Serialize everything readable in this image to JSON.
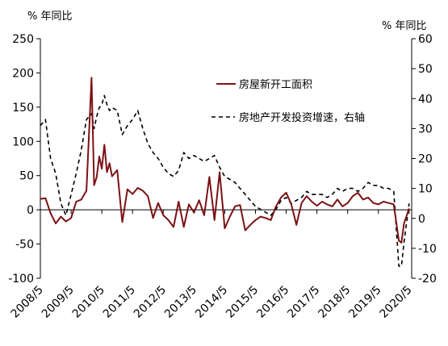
{
  "chart_data": {
    "type": "line",
    "title": "",
    "left_unit": "% 年同比",
    "right_unit": "% 年同比",
    "xlabel": "",
    "ylabel": "",
    "x_tick_labels": [
      "2008/5",
      "2009/5",
      "2010/5",
      "2011/5",
      "2012/5",
      "2013/5",
      "2014/5",
      "2015/5",
      "2016/5",
      "2017/5",
      "2018/5",
      "2019/5",
      "2020/5"
    ],
    "ylim_left": [
      -100,
      250
    ],
    "yticks_left": [
      -100,
      -50,
      0,
      50,
      100,
      150,
      200,
      250
    ],
    "ylim_right": [
      -20,
      60
    ],
    "yticks_right": [
      -20,
      -10,
      0,
      10,
      20,
      30,
      40,
      50,
      60
    ],
    "grid": false,
    "legend_position": "upper-center-right",
    "series": [
      {
        "name": "房屋新开工面积",
        "axis": "left",
        "style": "solid",
        "color": "#7b1214",
        "points": [
          [
            "2008/5",
            16
          ],
          [
            "2008/7",
            17
          ],
          [
            "2008/9",
            -5
          ],
          [
            "2008/11",
            -20
          ],
          [
            "2009/1",
            -10
          ],
          [
            "2009/3",
            -17
          ],
          [
            "2009/5",
            -12
          ],
          [
            "2009/7",
            12
          ],
          [
            "2009/9",
            15
          ],
          [
            "2009/11",
            28
          ],
          [
            "2010/1",
            193
          ],
          [
            "2010/2",
            36
          ],
          [
            "2010/3",
            48
          ],
          [
            "2010/4",
            78
          ],
          [
            "2010/5",
            60
          ],
          [
            "2010/6",
            95
          ],
          [
            "2010/7",
            55
          ],
          [
            "2010/8",
            68
          ],
          [
            "2010/9",
            49
          ],
          [
            "2010/11",
            58
          ],
          [
            "2011/1",
            -18
          ],
          [
            "2011/3",
            30
          ],
          [
            "2011/5",
            23
          ],
          [
            "2011/7",
            32
          ],
          [
            "2011/9",
            28
          ],
          [
            "2011/11",
            20
          ],
          [
            "2012/1",
            -12
          ],
          [
            "2012/3",
            10
          ],
          [
            "2012/5",
            -8
          ],
          [
            "2012/7",
            -15
          ],
          [
            "2012/9",
            -25
          ],
          [
            "2012/11",
            12
          ],
          [
            "2013/1",
            -25
          ],
          [
            "2013/3",
            8
          ],
          [
            "2013/5",
            -4
          ],
          [
            "2013/7",
            14
          ],
          [
            "2013/9",
            -8
          ],
          [
            "2013/11",
            48
          ],
          [
            "2014/1",
            -15
          ],
          [
            "2014/3",
            55
          ],
          [
            "2014/5",
            -27
          ],
          [
            "2014/7",
            -10
          ],
          [
            "2014/9",
            5
          ],
          [
            "2014/11",
            7
          ],
          [
            "2015/1",
            -30
          ],
          [
            "2015/3",
            -22
          ],
          [
            "2015/5",
            -15
          ],
          [
            "2015/7",
            -10
          ],
          [
            "2015/9",
            -12
          ],
          [
            "2015/11",
            -15
          ],
          [
            "2016/1",
            5
          ],
          [
            "2016/3",
            18
          ],
          [
            "2016/5",
            25
          ],
          [
            "2016/7",
            8
          ],
          [
            "2016/9",
            -22
          ],
          [
            "2016/11",
            10
          ],
          [
            "2017/1",
            20
          ],
          [
            "2017/3",
            12
          ],
          [
            "2017/5",
            6
          ],
          [
            "2017/7",
            12
          ],
          [
            "2017/9",
            8
          ],
          [
            "2017/11",
            5
          ],
          [
            "2018/1",
            15
          ],
          [
            "2018/3",
            5
          ],
          [
            "2018/5",
            10
          ],
          [
            "2018/7",
            20
          ],
          [
            "2018/9",
            25
          ],
          [
            "2018/11",
            15
          ],
          [
            "2019/1",
            18
          ],
          [
            "2019/3",
            10
          ],
          [
            "2019/5",
            8
          ],
          [
            "2019/7",
            12
          ],
          [
            "2019/9",
            10
          ],
          [
            "2019/11",
            8
          ],
          [
            "2020/1",
            -45
          ],
          [
            "2020/2",
            -48
          ],
          [
            "2020/3",
            -20
          ],
          [
            "2020/5",
            2
          ]
        ]
      },
      {
        "name": "房地产开发投资增速，右轴",
        "axis": "right",
        "style": "dashed",
        "color": "#000000",
        "points": [
          [
            "2008/5",
            31
          ],
          [
            "2008/7",
            33
          ],
          [
            "2008/9",
            20
          ],
          [
            "2008/11",
            15
          ],
          [
            "2009/1",
            5
          ],
          [
            "2009/3",
            1
          ],
          [
            "2009/5",
            8
          ],
          [
            "2009/7",
            15
          ],
          [
            "2009/9",
            23
          ],
          [
            "2009/11",
            33
          ],
          [
            "2010/1",
            35
          ],
          [
            "2010/2",
            30
          ],
          [
            "2010/3",
            34
          ],
          [
            "2010/4",
            37
          ],
          [
            "2010/5",
            38
          ],
          [
            "2010/6",
            41
          ],
          [
            "2010/7",
            38
          ],
          [
            "2010/8",
            36
          ],
          [
            "2010/9",
            37
          ],
          [
            "2010/11",
            36
          ],
          [
            "2011/1",
            28
          ],
          [
            "2011/3",
            31
          ],
          [
            "2011/5",
            33
          ],
          [
            "2011/7",
            36
          ],
          [
            "2011/9",
            30
          ],
          [
            "2011/11",
            25
          ],
          [
            "2012/1",
            22
          ],
          [
            "2012/3",
            20
          ],
          [
            "2012/5",
            17
          ],
          [
            "2012/7",
            15
          ],
          [
            "2012/9",
            14
          ],
          [
            "2012/11",
            16
          ],
          [
            "2013/1",
            22
          ],
          [
            "2013/3",
            20
          ],
          [
            "2013/5",
            21
          ],
          [
            "2013/7",
            20
          ],
          [
            "2013/9",
            19
          ],
          [
            "2013/11",
            20
          ],
          [
            "2014/1",
            21
          ],
          [
            "2014/3",
            17
          ],
          [
            "2014/5",
            14
          ],
          [
            "2014/7",
            13
          ],
          [
            "2014/9",
            12
          ],
          [
            "2014/11",
            10
          ],
          [
            "2015/1",
            8
          ],
          [
            "2015/3",
            6
          ],
          [
            "2015/5",
            4
          ],
          [
            "2015/7",
            3
          ],
          [
            "2015/9",
            2
          ],
          [
            "2015/11",
            1
          ],
          [
            "2016/1",
            3
          ],
          [
            "2016/3",
            6
          ],
          [
            "2016/5",
            7
          ],
          [
            "2016/7",
            5
          ],
          [
            "2016/9",
            6
          ],
          [
            "2016/11",
            7
          ],
          [
            "2017/1",
            9
          ],
          [
            "2017/3",
            8
          ],
          [
            "2017/5",
            8
          ],
          [
            "2017/7",
            8
          ],
          [
            "2017/9",
            7
          ],
          [
            "2017/11",
            8
          ],
          [
            "2018/1",
            10
          ],
          [
            "2018/3",
            9
          ],
          [
            "2018/5",
            10
          ],
          [
            "2018/7",
            10
          ],
          [
            "2018/9",
            9
          ],
          [
            "2018/11",
            10
          ],
          [
            "2019/1",
            12
          ],
          [
            "2019/3",
            11
          ],
          [
            "2019/5",
            11
          ],
          [
            "2019/7",
            10
          ],
          [
            "2019/9",
            10
          ],
          [
            "2019/11",
            9
          ],
          [
            "2020/1",
            -16
          ],
          [
            "2020/2",
            -16
          ],
          [
            "2020/3",
            -8
          ],
          [
            "2020/5",
            5
          ]
        ]
      }
    ]
  }
}
